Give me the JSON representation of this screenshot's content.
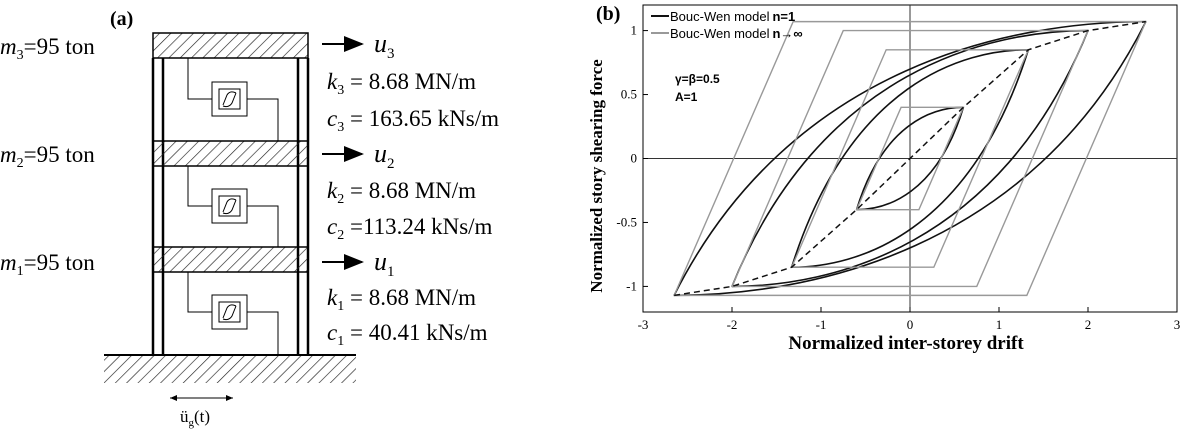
{
  "panel_a": {
    "label": "(a)",
    "stories": [
      {
        "mass": "m",
        "mass_sub": "3",
        "mass_value": "=95 ton",
        "disp": "u",
        "disp_sub": "3",
        "k": "k",
        "k_sub": "3",
        "k_value": " = 8.68  MN/m",
        "c": "c",
        "c_sub": "3",
        "c_value": " = 163.65 kNs/m"
      },
      {
        "mass": "m",
        "mass_sub": "2",
        "mass_value": "=95 ton",
        "disp": "u",
        "disp_sub": "2",
        "k": "k",
        "k_sub": "2",
        "k_value": " = 8.68  MN/m",
        "c": "c",
        "c_sub": "2",
        "c_value": " =113.24 kNs/m"
      },
      {
        "mass": "m",
        "mass_sub": "1",
        "mass_value": "=95 ton",
        "disp": "u",
        "disp_sub": "1",
        "k": "k",
        "k_sub": "1",
        "k_value": " = 8.68  MN/m",
        "c": "c",
        "c_sub": "1",
        "c_value": " = 40.41 kNs/m"
      }
    ],
    "ground_accel": "ü",
    "ground_accel_sub": "g",
    "ground_accel_arg": "(t)"
  },
  "panel_b": {
    "label": "(b)",
    "params": [
      "γ=β=0.5",
      "A=1"
    ]
  },
  "chart_data": {
    "type": "line",
    "title": "",
    "xlabel": "Normalized inter-storey drift",
    "ylabel": "Normalized story shearing force",
    "xlim": [
      -3,
      3
    ],
    "ylim": [
      -1.2,
      1.2
    ],
    "xticks": [
      -3,
      -2,
      -1,
      0,
      1,
      2,
      3
    ],
    "yticks": [
      -1,
      -0.5,
      0,
      0.5,
      1
    ],
    "xtick_labels": [
      "-3",
      "-2",
      "-1",
      "0",
      "1",
      "2",
      "3"
    ],
    "ytick_labels": [
      "-1",
      "-0.5",
      "0",
      "0.5",
      "1"
    ],
    "grid": false,
    "legend_position": "top-left",
    "series": [
      {
        "name": "Bouc-Wen model",
        "name_suffix": "n=1",
        "color": "#111111",
        "loops": [
          {
            "x1": 0.6,
            "y1": 0.4
          },
          {
            "x1": 1.33,
            "y1": 0.85
          },
          {
            "x1": 2.0,
            "y1": 1.0
          },
          {
            "x1": 2.65,
            "y1": 1.07
          }
        ]
      },
      {
        "name": "Bouc-Wen model",
        "name_suffix": "n→∞",
        "color": "#999999",
        "loops": [
          {
            "x1": 0.6,
            "y1": 0.4
          },
          {
            "x1": 1.33,
            "y1": 0.85
          },
          {
            "x1": 2.0,
            "y1": 1.0
          },
          {
            "x1": 2.65,
            "y1": 1.07
          }
        ]
      },
      {
        "name": "",
        "color": "#111111",
        "dashed": true,
        "x": [
          -2.65,
          -2.0,
          -1.33,
          -0.6,
          0,
          0.6,
          1.33,
          2.0,
          2.65
        ],
        "y": [
          -1.07,
          -1.0,
          -0.85,
          -0.4,
          0,
          0.4,
          0.85,
          1.0,
          1.07
        ]
      }
    ]
  }
}
